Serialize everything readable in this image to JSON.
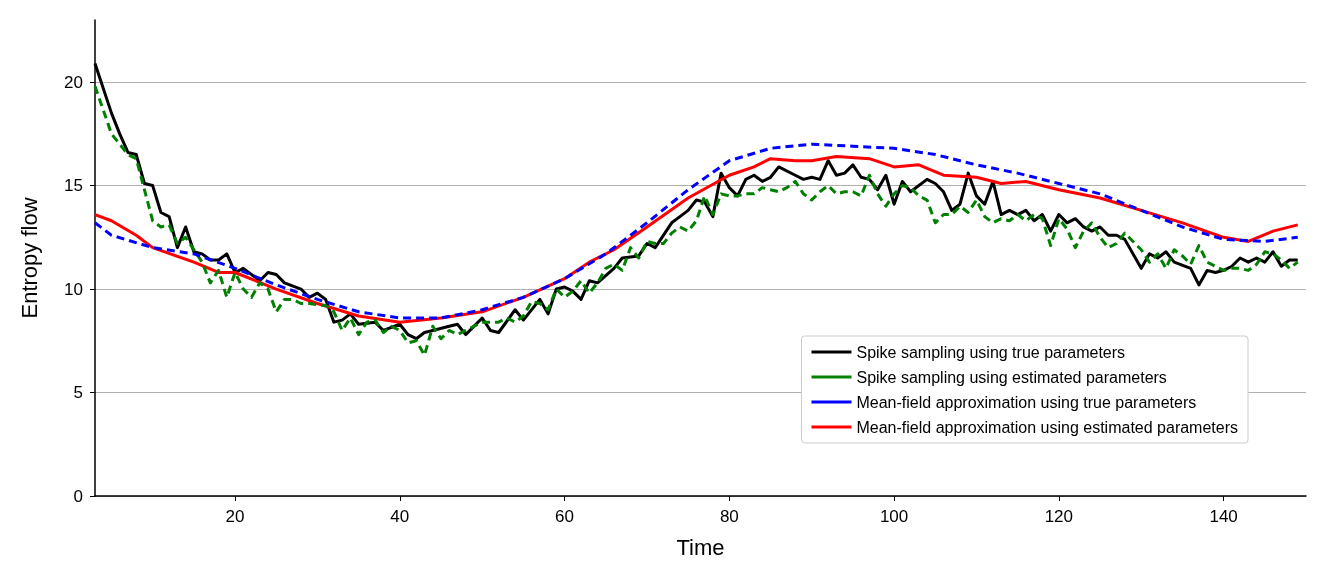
{
  "chart_data": {
    "type": "line",
    "xlabel": "Time",
    "ylabel": "Entropy flow",
    "xlim": [
      3,
      150
    ],
    "ylim": [
      0,
      23
    ],
    "xticks": [
      20,
      40,
      60,
      80,
      100,
      120,
      140
    ],
    "yticks": [
      0,
      5,
      10,
      15,
      20
    ],
    "grid": "y",
    "legend": "bottom right",
    "marker": "none",
    "series": [
      {
        "name": "Spike sampling using true parameters",
        "color": "#000000",
        "line_style": "solid",
        "x": [
          3,
          5,
          6,
          7,
          8,
          9,
          10,
          11,
          12,
          13,
          14,
          15,
          16,
          17,
          18,
          19,
          20,
          21,
          23,
          24,
          25,
          26,
          28,
          29,
          30,
          31,
          32,
          33,
          34,
          35,
          37,
          38,
          40,
          41,
          42,
          43,
          44,
          46,
          47,
          48,
          50,
          51,
          52,
          54,
          55,
          57,
          58,
          59,
          60,
          61,
          62,
          63,
          64,
          66,
          67,
          69,
          70,
          71,
          73,
          74,
          75,
          76,
          77,
          78,
          79,
          80,
          81,
          82,
          83,
          84,
          85,
          86,
          88,
          89,
          90,
          91,
          92,
          93,
          94,
          95,
          96,
          97,
          98,
          99,
          100,
          101,
          102,
          104,
          105,
          106,
          107,
          108,
          109,
          110,
          111,
          112,
          113,
          114,
          115,
          116,
          117,
          118,
          119,
          120,
          121,
          122,
          123,
          124,
          125,
          126,
          127,
          128,
          130,
          131,
          132,
          133,
          134,
          136,
          137,
          138,
          139,
          140,
          141,
          142,
          143,
          144,
          145,
          146,
          147,
          148,
          149
        ],
        "values": [
          20.9,
          18.5,
          17.5,
          16.6,
          16.5,
          15.1,
          15.0,
          13.7,
          13.5,
          12.0,
          13.0,
          11.8,
          11.7,
          11.4,
          11.4,
          11.7,
          10.8,
          11.0,
          10.4,
          10.8,
          10.7,
          10.3,
          10.0,
          9.6,
          9.8,
          9.5,
          8.4,
          8.5,
          8.8,
          8.3,
          8.4,
          8.0,
          8.3,
          7.8,
          7.6,
          7.9,
          8.0,
          8.2,
          8.3,
          7.8,
          8.6,
          8.0,
          7.9,
          9.0,
          8.5,
          9.5,
          8.8,
          10.0,
          10.1,
          9.9,
          9.5,
          10.4,
          10.3,
          11.0,
          11.5,
          11.6,
          12.2,
          12.0,
          13.2,
          13.5,
          13.8,
          14.3,
          14.2,
          13.5,
          15.6,
          14.9,
          14.5,
          15.3,
          15.5,
          15.2,
          15.4,
          15.9,
          15.5,
          15.3,
          15.4,
          15.3,
          16.2,
          15.5,
          15.6,
          16.0,
          15.4,
          15.3,
          14.8,
          15.5,
          14.1,
          15.2,
          14.7,
          15.3,
          15.1,
          14.7,
          13.8,
          14.1,
          15.6,
          14.5,
          14.1,
          15.2,
          13.6,
          13.8,
          13.6,
          13.8,
          13.3,
          13.6,
          12.8,
          13.6,
          13.2,
          13.4,
          13.0,
          12.8,
          13.0,
          12.6,
          12.6,
          12.4,
          11.0,
          11.7,
          11.5,
          11.8,
          11.3,
          11.0,
          10.2,
          10.9,
          10.8,
          10.9,
          11.1,
          11.5,
          11.3,
          11.5,
          11.3,
          11.8,
          11.1,
          11.4,
          11.4
        ]
      },
      {
        "name": "Spike sampling using estimated parameters",
        "color": "#008000",
        "line_style": "dashed",
        "x": [
          3,
          5,
          7,
          8,
          9,
          10,
          11,
          12,
          13,
          14,
          16,
          17,
          18,
          19,
          20,
          21,
          22,
          23,
          24,
          25,
          26,
          27,
          28,
          29,
          31,
          32,
          33,
          34,
          35,
          36,
          37,
          38,
          39,
          40,
          41,
          42,
          43,
          44,
          45,
          46,
          47,
          48,
          50,
          52,
          53,
          54,
          55,
          56,
          57,
          58,
          59,
          60,
          61,
          62,
          63,
          64,
          65,
          66,
          67,
          68,
          69,
          70,
          71,
          72,
          73,
          74,
          75,
          76,
          77,
          78,
          79,
          80,
          81,
          82,
          83,
          84,
          85,
          86,
          87,
          88,
          89,
          90,
          91,
          92,
          93,
          94,
          95,
          96,
          97,
          98,
          99,
          100,
          101,
          102,
          103,
          104,
          105,
          106,
          107,
          108,
          109,
          110,
          111,
          112,
          113,
          114,
          115,
          116,
          117,
          118,
          119,
          120,
          121,
          122,
          123,
          124,
          125,
          126,
          127,
          128,
          129,
          130,
          131,
          132,
          133,
          134,
          135,
          136,
          137,
          138,
          139,
          140,
          141,
          142,
          143,
          144,
          145,
          146,
          147,
          148,
          149
        ],
        "values": [
          19.8,
          17.5,
          16.5,
          16.3,
          14.8,
          13.3,
          13.0,
          13.1,
          12.2,
          12.5,
          11.3,
          10.3,
          10.9,
          9.6,
          10.8,
          10.0,
          9.6,
          10.3,
          10.0,
          8.9,
          9.5,
          9.5,
          9.3,
          9.3,
          9.2,
          8.9,
          8.0,
          8.6,
          7.8,
          8.4,
          8.5,
          7.9,
          8.2,
          8.0,
          7.4,
          7.5,
          6.8,
          8.2,
          7.6,
          8.0,
          7.8,
          8.0,
          8.4,
          8.4,
          8.6,
          8.4,
          8.7,
          9.4,
          9.3,
          9.0,
          10.0,
          9.6,
          9.9,
          10.4,
          9.8,
          10.3,
          11.0,
          11.2,
          10.9,
          12.0,
          11.5,
          12.3,
          12.2,
          12.2,
          12.7,
          13.0,
          12.8,
          13.3,
          14.5,
          13.6,
          14.6,
          14.5,
          14.5,
          14.6,
          14.6,
          14.9,
          14.8,
          14.7,
          14.9,
          15.2,
          14.6,
          14.3,
          14.7,
          15.0,
          14.6,
          14.7,
          14.7,
          14.5,
          15.5,
          14.6,
          14.0,
          14.6,
          15.0,
          14.9,
          14.5,
          14.3,
          13.2,
          13.6,
          13.6,
          14.0,
          13.7,
          14.3,
          13.5,
          13.2,
          13.4,
          13.3,
          13.6,
          13.3,
          13.6,
          13.4,
          12.1,
          13.4,
          12.9,
          12.0,
          12.8,
          13.2,
          12.5,
          12.0,
          12.2,
          12.7,
          12.3,
          11.9,
          11.3,
          11.7,
          11.0,
          11.9,
          11.6,
          11.2,
          12.1,
          11.3,
          11.1,
          10.9,
          11.0,
          11.0,
          10.9,
          11.2,
          11.8,
          11.7,
          11.4,
          11.0,
          11.3
        ]
      },
      {
        "name": "Mean-field approximation using true parameters",
        "color": "#0000ff",
        "line_style": "dashed",
        "x": [
          3,
          5,
          10,
          15,
          20,
          25,
          30,
          35,
          40,
          45,
          50,
          55,
          60,
          65,
          70,
          75,
          80,
          85,
          90,
          95,
          100,
          105,
          110,
          115,
          120,
          125,
          130,
          135,
          140,
          145,
          149
        ],
        "values": [
          13.2,
          12.6,
          12.0,
          11.7,
          11.0,
          10.2,
          9.5,
          8.9,
          8.6,
          8.6,
          9.0,
          9.6,
          10.5,
          11.7,
          13.2,
          14.8,
          16.2,
          16.8,
          17.0,
          16.9,
          16.8,
          16.5,
          16.0,
          15.6,
          15.1,
          14.6,
          13.8,
          13.0,
          12.4,
          12.3,
          12.5
        ]
      },
      {
        "name": "Mean-field approximation using estimated parameters",
        "color": "#ff0000",
        "line_style": "solid",
        "x": [
          3,
          5,
          8,
          10,
          15,
          18,
          20,
          25,
          30,
          35,
          40,
          45,
          50,
          55,
          60,
          63,
          66,
          70,
          75,
          80,
          83,
          85,
          88,
          90,
          93,
          97,
          100,
          103,
          106,
          110,
          113,
          116,
          120,
          125,
          130,
          135,
          140,
          143,
          146,
          149
        ],
        "values": [
          13.6,
          13.3,
          12.6,
          12.0,
          11.3,
          10.8,
          10.8,
          10.0,
          9.3,
          8.7,
          8.4,
          8.6,
          8.9,
          9.6,
          10.5,
          11.3,
          11.9,
          13.0,
          14.4,
          15.5,
          15.9,
          16.3,
          16.2,
          16.2,
          16.4,
          16.3,
          15.9,
          16.0,
          15.5,
          15.4,
          15.1,
          15.2,
          14.8,
          14.4,
          13.8,
          13.2,
          12.5,
          12.3,
          12.8,
          13.1
        ]
      }
    ]
  }
}
